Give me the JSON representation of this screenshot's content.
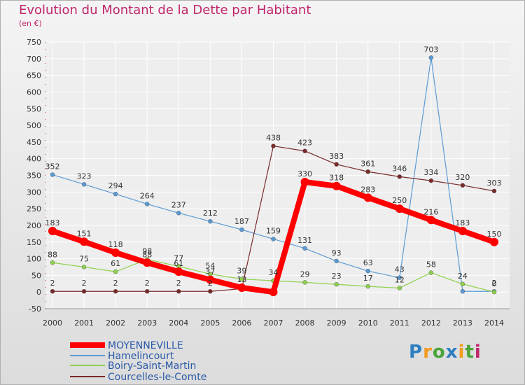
{
  "chart_data": {
    "type": "line",
    "title": "Evolution du Montant de la Dette par Habitant",
    "subtitle": "(en €)",
    "x": [
      "2000",
      "2001",
      "2002",
      "2003",
      "2004",
      "2005",
      "2006",
      "2007",
      "2008",
      "2009",
      "2010",
      "2011",
      "2012",
      "2013",
      "2014"
    ],
    "ylim": [
      -50,
      750
    ],
    "yticks": [
      -50,
      0,
      50,
      100,
      150,
      200,
      250,
      300,
      350,
      400,
      450,
      500,
      550,
      600,
      650,
      700,
      750
    ],
    "ytick_labels": [
      "-50",
      "0",
      "50",
      "100",
      "150",
      "200",
      "250",
      "300",
      "350",
      "400",
      "450",
      "500",
      "550",
      "600",
      "650",
      "700",
      "750"
    ],
    "grid": true,
    "legend_position": "bottom-left",
    "series": [
      {
        "name": "MOYENNEVILLE",
        "color": "#ff0000",
        "values": [
          183,
          151,
          118,
          88,
          61,
          37,
          13,
          0,
          330,
          318,
          283,
          250,
          216,
          183,
          150
        ],
        "labels": [
          "183",
          "151",
          "118",
          "88",
          "61",
          "37",
          "13",
          "",
          "330",
          "318",
          "283",
          "250",
          "216",
          "183",
          "150"
        ]
      },
      {
        "name": "Hamelincourt",
        "color": "#5b9bd5",
        "values": [
          352,
          323,
          294,
          264,
          237,
          212,
          187,
          159,
          131,
          93,
          63,
          43,
          703,
          2,
          2
        ],
        "labels": [
          "352",
          "323",
          "294",
          "264",
          "237",
          "212",
          "187",
          "159",
          "131",
          "93",
          "63",
          "43",
          "703",
          "",
          "2"
        ]
      },
      {
        "name": "Boiry-Saint-Martin",
        "color": "#8fd14f",
        "values": [
          88,
          75,
          61,
          98,
          77,
          54,
          39,
          34,
          29,
          23,
          17,
          12,
          58,
          24,
          0
        ],
        "labels": [
          "88",
          "75",
          "61",
          "98",
          "77",
          "54",
          "39",
          "34",
          "29",
          "23",
          "17",
          "12",
          "58",
          "24",
          "0"
        ]
      },
      {
        "name": "Courcelles-le-Comte",
        "color": "#7b2a2a",
        "values": [
          2,
          2,
          2,
          2,
          2,
          2,
          10,
          438,
          423,
          383,
          361,
          346,
          334,
          320,
          303
        ],
        "labels": [
          "2",
          "2",
          "2",
          "2",
          "2",
          "2",
          "",
          "438",
          "423",
          "383",
          "361",
          "346",
          "334",
          "320",
          "303"
        ]
      }
    ]
  },
  "logo": {
    "letters": [
      "P",
      "r",
      "o",
      "x",
      "i",
      "t",
      "i"
    ]
  }
}
